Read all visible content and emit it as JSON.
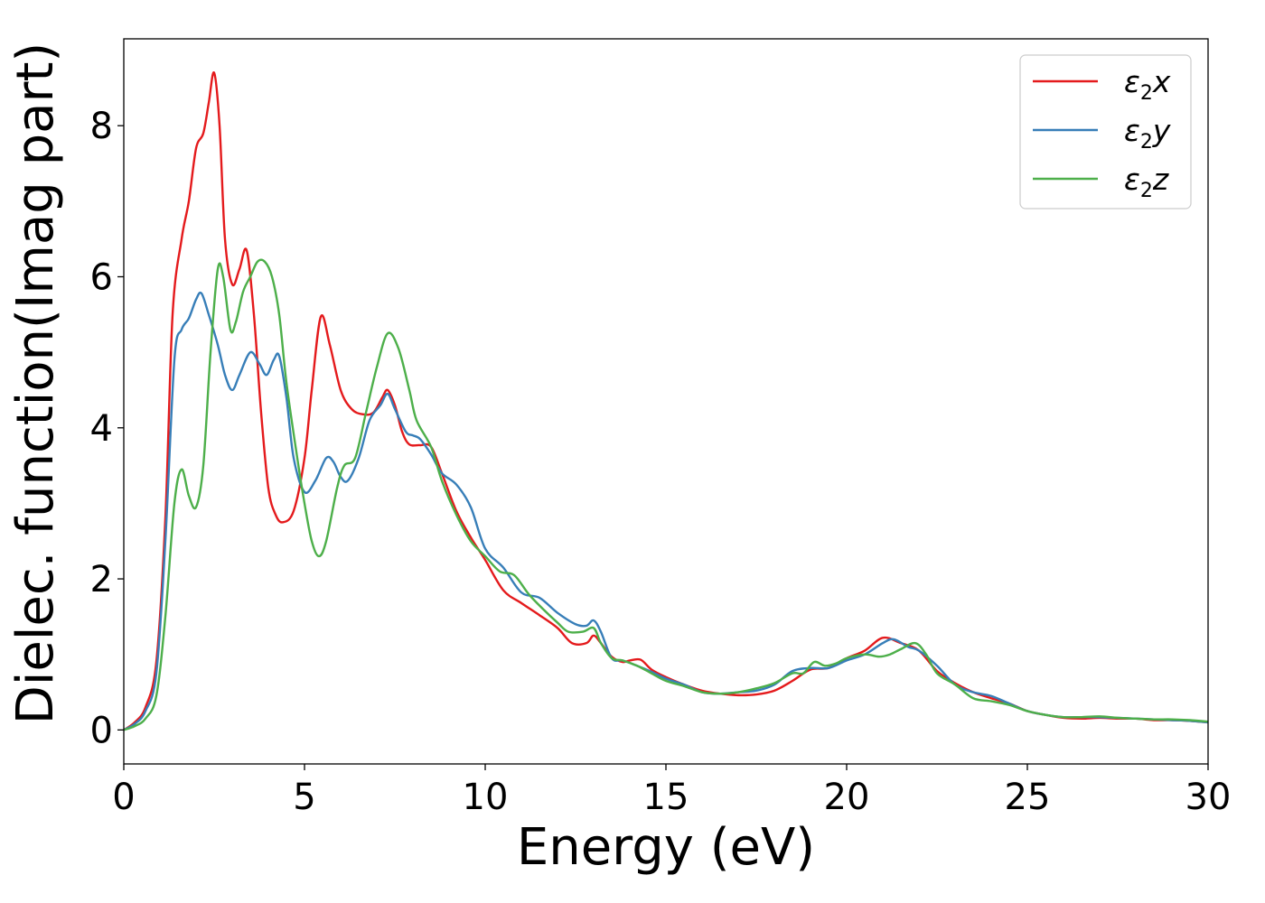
{
  "chart_data": {
    "type": "line",
    "title": "",
    "xlabel": "Energy (eV)",
    "ylabel": "Dielec. function(Imag part)",
    "xlim": [
      0,
      30
    ],
    "ylim": [
      -0.45,
      9.15
    ],
    "xticks": [
      0,
      5,
      10,
      15,
      20,
      25,
      30
    ],
    "yticks": [
      0,
      2,
      4,
      6,
      8
    ],
    "grid": false,
    "legend_position": "top-right",
    "series": [
      {
        "name": "ε2x",
        "label_base": "ε",
        "label_sub": "2",
        "label_var": "x",
        "color": "#e41a1c",
        "points": [
          [
            0,
            0
          ],
          [
            0.3,
            0.1
          ],
          [
            0.6,
            0.3
          ],
          [
            0.9,
            0.9
          ],
          [
            1.15,
            2.8
          ],
          [
            1.35,
            5.5
          ],
          [
            1.6,
            6.5
          ],
          [
            1.8,
            7.0
          ],
          [
            2.0,
            7.7
          ],
          [
            2.2,
            7.9
          ],
          [
            2.35,
            8.3
          ],
          [
            2.5,
            8.7
          ],
          [
            2.65,
            8.0
          ],
          [
            2.8,
            6.5
          ],
          [
            3.0,
            5.9
          ],
          [
            3.2,
            6.1
          ],
          [
            3.4,
            6.35
          ],
          [
            3.6,
            5.5
          ],
          [
            3.8,
            4.2
          ],
          [
            4.0,
            3.2
          ],
          [
            4.2,
            2.85
          ],
          [
            4.4,
            2.75
          ],
          [
            4.7,
            2.9
          ],
          [
            5.0,
            3.6
          ],
          [
            5.2,
            4.5
          ],
          [
            5.45,
            5.47
          ],
          [
            5.7,
            5.1
          ],
          [
            6.0,
            4.5
          ],
          [
            6.3,
            4.25
          ],
          [
            6.6,
            4.18
          ],
          [
            6.9,
            4.2
          ],
          [
            7.15,
            4.4
          ],
          [
            7.3,
            4.5
          ],
          [
            7.5,
            4.3
          ],
          [
            7.7,
            3.95
          ],
          [
            7.9,
            3.78
          ],
          [
            8.2,
            3.77
          ],
          [
            8.5,
            3.75
          ],
          [
            8.8,
            3.4
          ],
          [
            9.2,
            2.9
          ],
          [
            9.6,
            2.55
          ],
          [
            10.0,
            2.25
          ],
          [
            10.5,
            1.85
          ],
          [
            11.0,
            1.68
          ],
          [
            11.5,
            1.52
          ],
          [
            12.0,
            1.35
          ],
          [
            12.4,
            1.15
          ],
          [
            12.8,
            1.15
          ],
          [
            13.0,
            1.25
          ],
          [
            13.2,
            1.15
          ],
          [
            13.5,
            0.97
          ],
          [
            13.8,
            0.9
          ],
          [
            14.0,
            0.92
          ],
          [
            14.3,
            0.93
          ],
          [
            14.6,
            0.8
          ],
          [
            15.0,
            0.7
          ],
          [
            15.5,
            0.6
          ],
          [
            16.0,
            0.52
          ],
          [
            16.5,
            0.48
          ],
          [
            17.0,
            0.46
          ],
          [
            17.5,
            0.47
          ],
          [
            18.0,
            0.52
          ],
          [
            18.5,
            0.65
          ],
          [
            19.0,
            0.8
          ],
          [
            19.5,
            0.82
          ],
          [
            20.0,
            0.95
          ],
          [
            20.5,
            1.05
          ],
          [
            21.0,
            1.22
          ],
          [
            21.5,
            1.15
          ],
          [
            22.0,
            1.05
          ],
          [
            22.5,
            0.78
          ],
          [
            23.0,
            0.62
          ],
          [
            23.5,
            0.5
          ],
          [
            24.0,
            0.42
          ],
          [
            24.5,
            0.35
          ],
          [
            25.0,
            0.25
          ],
          [
            25.5,
            0.2
          ],
          [
            26.0,
            0.16
          ],
          [
            26.5,
            0.15
          ],
          [
            27.0,
            0.16
          ],
          [
            27.5,
            0.15
          ],
          [
            28.0,
            0.15
          ],
          [
            28.5,
            0.13
          ],
          [
            29.0,
            0.13
          ],
          [
            29.5,
            0.12
          ],
          [
            30.0,
            0.1
          ]
        ]
      },
      {
        "name": "ε2y",
        "label_base": "ε",
        "label_sub": "2",
        "label_var": "y",
        "color": "#377eb8",
        "points": [
          [
            0,
            0
          ],
          [
            0.3,
            0.08
          ],
          [
            0.6,
            0.25
          ],
          [
            0.9,
            0.75
          ],
          [
            1.15,
            2.5
          ],
          [
            1.4,
            4.9
          ],
          [
            1.6,
            5.3
          ],
          [
            1.8,
            5.45
          ],
          [
            2.0,
            5.7
          ],
          [
            2.15,
            5.78
          ],
          [
            2.35,
            5.5
          ],
          [
            2.6,
            5.1
          ],
          [
            2.8,
            4.7
          ],
          [
            3.0,
            4.5
          ],
          [
            3.2,
            4.7
          ],
          [
            3.5,
            5.0
          ],
          [
            3.75,
            4.85
          ],
          [
            3.95,
            4.7
          ],
          [
            4.15,
            4.9
          ],
          [
            4.3,
            4.95
          ],
          [
            4.5,
            4.4
          ],
          [
            4.7,
            3.6
          ],
          [
            5.0,
            3.15
          ],
          [
            5.3,
            3.3
          ],
          [
            5.6,
            3.6
          ],
          [
            5.8,
            3.55
          ],
          [
            6.0,
            3.35
          ],
          [
            6.2,
            3.3
          ],
          [
            6.5,
            3.6
          ],
          [
            6.8,
            4.1
          ],
          [
            7.1,
            4.3
          ],
          [
            7.3,
            4.45
          ],
          [
            7.5,
            4.25
          ],
          [
            7.8,
            3.95
          ],
          [
            8.0,
            3.9
          ],
          [
            8.2,
            3.85
          ],
          [
            8.5,
            3.65
          ],
          [
            8.8,
            3.4
          ],
          [
            9.2,
            3.25
          ],
          [
            9.6,
            2.95
          ],
          [
            10.0,
            2.4
          ],
          [
            10.5,
            2.15
          ],
          [
            11.0,
            1.82
          ],
          [
            11.5,
            1.75
          ],
          [
            12.0,
            1.55
          ],
          [
            12.5,
            1.4
          ],
          [
            12.8,
            1.38
          ],
          [
            13.0,
            1.45
          ],
          [
            13.2,
            1.3
          ],
          [
            13.5,
            0.95
          ],
          [
            13.8,
            0.92
          ],
          [
            14.2,
            0.85
          ],
          [
            14.6,
            0.77
          ],
          [
            15.0,
            0.68
          ],
          [
            15.5,
            0.6
          ],
          [
            16.0,
            0.5
          ],
          [
            16.5,
            0.48
          ],
          [
            17.0,
            0.5
          ],
          [
            17.5,
            0.52
          ],
          [
            18.0,
            0.6
          ],
          [
            18.5,
            0.78
          ],
          [
            19.0,
            0.82
          ],
          [
            19.5,
            0.82
          ],
          [
            20.0,
            0.92
          ],
          [
            20.5,
            1.0
          ],
          [
            21.0,
            1.15
          ],
          [
            21.3,
            1.2
          ],
          [
            21.7,
            1.1
          ],
          [
            22.0,
            1.05
          ],
          [
            22.5,
            0.85
          ],
          [
            23.0,
            0.6
          ],
          [
            23.5,
            0.5
          ],
          [
            24.0,
            0.45
          ],
          [
            24.5,
            0.35
          ],
          [
            25.0,
            0.25
          ],
          [
            25.5,
            0.2
          ],
          [
            26.0,
            0.17
          ],
          [
            26.5,
            0.17
          ],
          [
            27.0,
            0.17
          ],
          [
            27.5,
            0.16
          ],
          [
            28.0,
            0.15
          ],
          [
            28.5,
            0.14
          ],
          [
            29.0,
            0.13
          ],
          [
            29.5,
            0.12
          ],
          [
            30.0,
            0.1
          ]
        ]
      },
      {
        "name": "ε2z",
        "label_base": "ε",
        "label_sub": "2",
        "label_var": "z",
        "color": "#4daf4a",
        "points": [
          [
            0,
            0
          ],
          [
            0.3,
            0.05
          ],
          [
            0.6,
            0.15
          ],
          [
            0.9,
            0.45
          ],
          [
            1.15,
            1.5
          ],
          [
            1.4,
            3.0
          ],
          [
            1.6,
            3.45
          ],
          [
            1.8,
            3.1
          ],
          [
            2.0,
            2.95
          ],
          [
            2.2,
            3.5
          ],
          [
            2.4,
            5.0
          ],
          [
            2.6,
            6.1
          ],
          [
            2.75,
            6.0
          ],
          [
            2.95,
            5.3
          ],
          [
            3.1,
            5.4
          ],
          [
            3.3,
            5.8
          ],
          [
            3.5,
            6.0
          ],
          [
            3.7,
            6.2
          ],
          [
            3.9,
            6.2
          ],
          [
            4.1,
            6.0
          ],
          [
            4.3,
            5.5
          ],
          [
            4.5,
            4.6
          ],
          [
            4.8,
            3.6
          ],
          [
            5.0,
            3.0
          ],
          [
            5.2,
            2.5
          ],
          [
            5.4,
            2.3
          ],
          [
            5.6,
            2.5
          ],
          [
            5.9,
            3.2
          ],
          [
            6.1,
            3.5
          ],
          [
            6.4,
            3.6
          ],
          [
            6.7,
            4.2
          ],
          [
            7.0,
            4.8
          ],
          [
            7.3,
            5.25
          ],
          [
            7.6,
            5.05
          ],
          [
            7.9,
            4.5
          ],
          [
            8.1,
            4.1
          ],
          [
            8.5,
            3.75
          ],
          [
            8.8,
            3.3
          ],
          [
            9.2,
            2.85
          ],
          [
            9.6,
            2.5
          ],
          [
            10.0,
            2.3
          ],
          [
            10.4,
            2.1
          ],
          [
            10.8,
            2.05
          ],
          [
            11.2,
            1.8
          ],
          [
            11.6,
            1.6
          ],
          [
            12.0,
            1.42
          ],
          [
            12.3,
            1.3
          ],
          [
            12.7,
            1.3
          ],
          [
            13.0,
            1.35
          ],
          [
            13.2,
            1.15
          ],
          [
            13.5,
            0.95
          ],
          [
            13.8,
            0.92
          ],
          [
            14.2,
            0.85
          ],
          [
            14.6,
            0.75
          ],
          [
            15.0,
            0.65
          ],
          [
            15.5,
            0.58
          ],
          [
            16.0,
            0.5
          ],
          [
            16.5,
            0.48
          ],
          [
            17.0,
            0.5
          ],
          [
            17.5,
            0.55
          ],
          [
            18.0,
            0.62
          ],
          [
            18.5,
            0.75
          ],
          [
            18.8,
            0.75
          ],
          [
            19.1,
            0.9
          ],
          [
            19.4,
            0.85
          ],
          [
            19.7,
            0.88
          ],
          [
            20.0,
            0.95
          ],
          [
            20.5,
            1.0
          ],
          [
            20.9,
            0.97
          ],
          [
            21.2,
            1.0
          ],
          [
            21.5,
            1.07
          ],
          [
            21.9,
            1.15
          ],
          [
            22.2,
            1.0
          ],
          [
            22.5,
            0.75
          ],
          [
            23.0,
            0.6
          ],
          [
            23.5,
            0.42
          ],
          [
            24.0,
            0.38
          ],
          [
            24.5,
            0.33
          ],
          [
            25.0,
            0.25
          ],
          [
            25.5,
            0.2
          ],
          [
            26.0,
            0.17
          ],
          [
            26.5,
            0.17
          ],
          [
            27.0,
            0.18
          ],
          [
            27.5,
            0.16
          ],
          [
            28.0,
            0.15
          ],
          [
            28.5,
            0.14
          ],
          [
            29.0,
            0.14
          ],
          [
            29.5,
            0.13
          ],
          [
            30.0,
            0.11
          ]
        ]
      }
    ]
  }
}
